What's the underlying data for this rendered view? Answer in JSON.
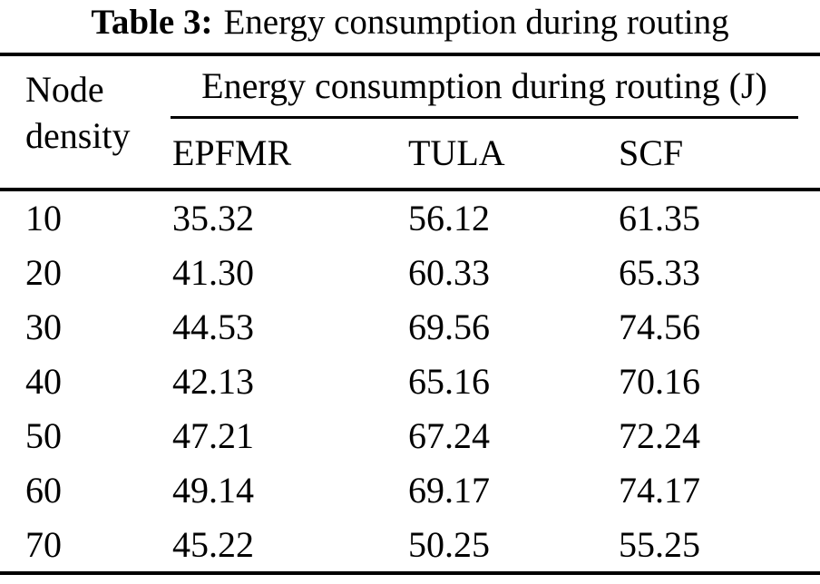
{
  "caption": {
    "label": "Table 3:",
    "text": "Energy consumption during routing"
  },
  "table": {
    "row_header": "Node density",
    "span_header": "Energy consumption during routing (J)",
    "columns": [
      "EPFMR",
      "TULA",
      "SCF"
    ],
    "rows": [
      {
        "density": "10",
        "values": [
          "35.32",
          "56.12",
          "61.35"
        ]
      },
      {
        "density": "20",
        "values": [
          "41.30",
          "60.33",
          "65.33"
        ]
      },
      {
        "density": "30",
        "values": [
          "44.53",
          "69.56",
          "74.56"
        ]
      },
      {
        "density": "40",
        "values": [
          "42.13",
          "65.16",
          "70.16"
        ]
      },
      {
        "density": "50",
        "values": [
          "47.21",
          "67.24",
          "72.24"
        ]
      },
      {
        "density": "60",
        "values": [
          "49.14",
          "69.17",
          "74.17"
        ]
      },
      {
        "density": "70",
        "values": [
          "45.22",
          "50.25",
          "55.25"
        ]
      }
    ],
    "ink_color": "#000000",
    "background_color": "#ffffff"
  }
}
